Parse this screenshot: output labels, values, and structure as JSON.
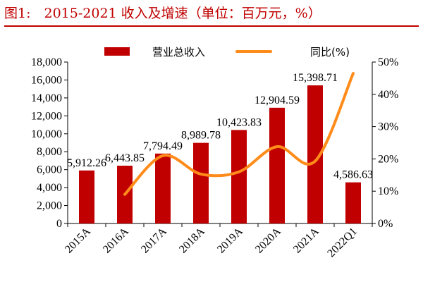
{
  "title": "图1:　2015-2021 收入及增速（单位：百万元，%）",
  "chart_data": {
    "type": "bar+line",
    "categories": [
      "2015A",
      "2016A",
      "2017A",
      "2018A",
      "2019A",
      "2020A",
      "2021A",
      "2022Q1"
    ],
    "series": [
      {
        "name": "营业总收入",
        "type": "bar",
        "axis": "left",
        "values": [
          5912.26,
          6443.85,
          7794.49,
          8989.78,
          10423.83,
          12904.59,
          15398.71,
          4586.63
        ],
        "labels": [
          "5,912.26",
          "6,443.85",
          "7,794.49",
          "8,989.78",
          "10,423.83",
          "12,904.59",
          "15,398.71",
          "4,586.63"
        ],
        "color": "#c00000"
      },
      {
        "name": "同比(%)",
        "type": "line",
        "axis": "right",
        "smooth": true,
        "values": [
          null,
          9.0,
          21.0,
          15.3,
          16.0,
          23.8,
          19.3,
          46.5
        ],
        "color": "#ff8c1a"
      }
    ],
    "y_left": {
      "ylim": [
        0,
        18000
      ],
      "ticks": [
        0,
        2000,
        4000,
        6000,
        8000,
        10000,
        12000,
        14000,
        16000,
        18000
      ],
      "tick_labels": [
        "0",
        "2,000",
        "4,000",
        "6,000",
        "8,000",
        "10,000",
        "12,000",
        "14,000",
        "16,000",
        "18,000"
      ]
    },
    "y_right": {
      "ylim": [
        0,
        50
      ],
      "ticks": [
        0,
        10,
        20,
        30,
        40,
        50
      ],
      "tick_labels": [
        "0%",
        "10%",
        "20%",
        "30%",
        "40%",
        "50%"
      ]
    },
    "grid": false,
    "legend": "top"
  }
}
